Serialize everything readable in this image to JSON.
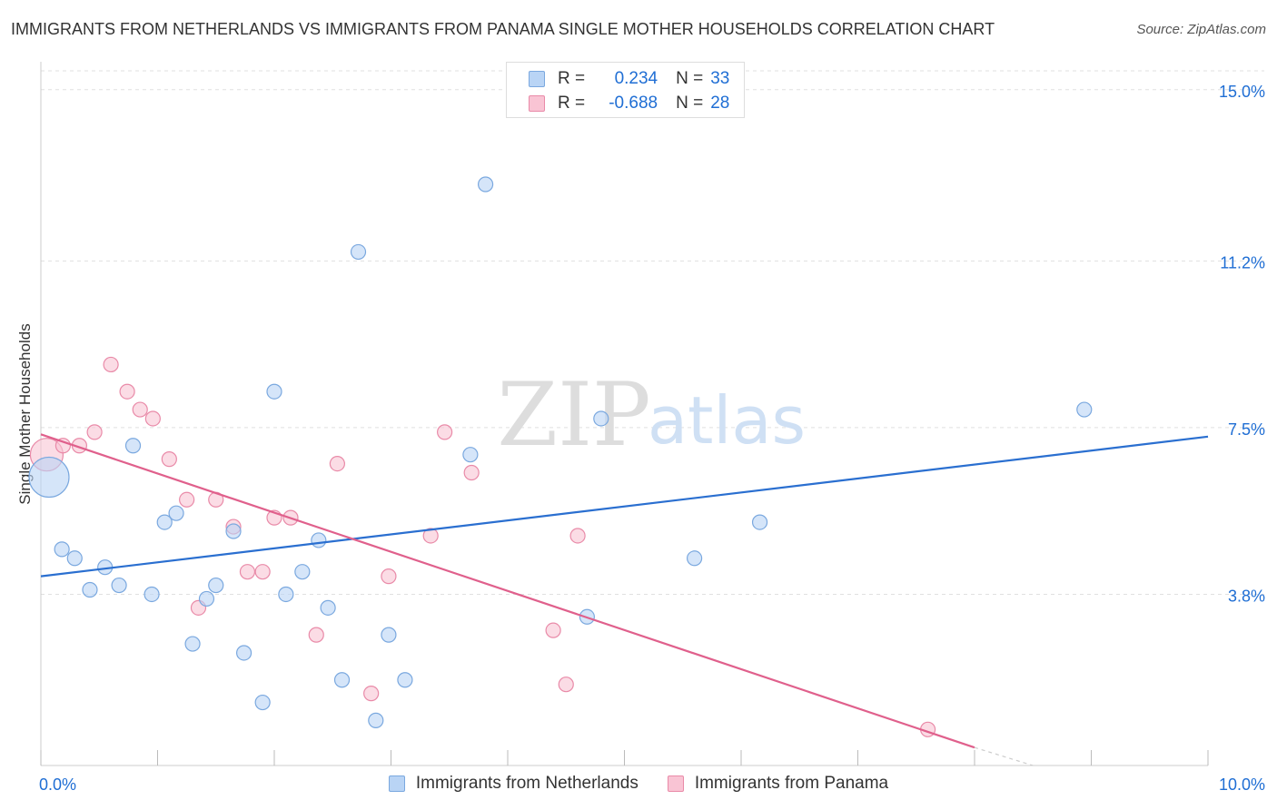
{
  "title": "IMMIGRANTS FROM NETHERLANDS VS IMMIGRANTS FROM PANAMA SINGLE MOTHER HOUSEHOLDS CORRELATION CHART",
  "source": "Source: ZipAtlas.com",
  "watermark": {
    "zip": "ZIP",
    "atlas": "atlas"
  },
  "legend": {
    "rows": [
      {
        "r_label": "R =",
        "r_value": "0.234",
        "n_label": "N =",
        "n_value": "33"
      },
      {
        "r_label": "R =",
        "r_value": "-0.688",
        "n_label": "N =",
        "n_value": "28"
      }
    ]
  },
  "bottom_legend": [
    "Immigrants from Netherlands",
    "Immigrants from Panama"
  ],
  "colors": {
    "netherlands_fill": "#b9d4f5",
    "netherlands_stroke": "#7aa8df",
    "netherlands_line": "#2a6fd0",
    "panama_fill": "#f9c4d4",
    "panama_stroke": "#e98aa8",
    "panama_line": "#e0608c",
    "axis_label": "#1f6ed4",
    "grid": "#e0e0e0"
  },
  "chart_data": {
    "type": "scatter",
    "title": "IMMIGRANTS FROM NETHERLANDS VS IMMIGRANTS FROM PANAMA SINGLE MOTHER HOUSEHOLDS CORRELATION CHART",
    "xlabel": "",
    "ylabel": "Single Mother Households",
    "xlim": [
      0,
      10
    ],
    "ylim": [
      0,
      15.5
    ],
    "x_tick_labels": [
      "0.0%",
      "10.0%"
    ],
    "y_ticks": [
      3.8,
      7.5,
      11.2,
      15.0
    ],
    "y_tick_labels": [
      "3.8%",
      "7.5%",
      "11.2%",
      "15.0%"
    ],
    "grid": "horizontal dashed",
    "legend_position": "top-center",
    "series": [
      {
        "name": "Immigrants from Netherlands",
        "r": 0.234,
        "n": 33,
        "points": [
          [
            0.07,
            6.4
          ],
          [
            0.18,
            4.8
          ],
          [
            0.29,
            4.6
          ],
          [
            0.42,
            3.9
          ],
          [
            0.55,
            4.4
          ],
          [
            0.67,
            4.0
          ],
          [
            0.79,
            7.1
          ],
          [
            0.95,
            3.8
          ],
          [
            1.06,
            5.4
          ],
          [
            1.16,
            5.6
          ],
          [
            1.3,
            2.7
          ],
          [
            1.42,
            3.7
          ],
          [
            1.5,
            4.0
          ],
          [
            1.65,
            5.2
          ],
          [
            1.74,
            2.5
          ],
          [
            1.9,
            1.4
          ],
          [
            2.0,
            8.3
          ],
          [
            2.1,
            3.8
          ],
          [
            2.24,
            4.3
          ],
          [
            2.38,
            5.0
          ],
          [
            2.46,
            3.5
          ],
          [
            2.58,
            1.9
          ],
          [
            2.72,
            11.4
          ],
          [
            2.87,
            1.0
          ],
          [
            2.98,
            2.9
          ],
          [
            3.12,
            1.9
          ],
          [
            3.68,
            6.9
          ],
          [
            3.81,
            12.9
          ],
          [
            4.68,
            3.3
          ],
          [
            4.8,
            7.7
          ],
          [
            5.6,
            4.6
          ],
          [
            6.16,
            5.4
          ],
          [
            8.94,
            7.9
          ]
        ],
        "trend": {
          "x": [
            0,
            10
          ],
          "y": [
            4.2,
            7.3
          ]
        }
      },
      {
        "name": "Immigrants from Panama",
        "r": -0.688,
        "n": 28,
        "points": [
          [
            0.05,
            6.9
          ],
          [
            0.19,
            7.1
          ],
          [
            0.33,
            7.1
          ],
          [
            0.46,
            7.4
          ],
          [
            0.6,
            8.9
          ],
          [
            0.74,
            8.3
          ],
          [
            0.85,
            7.9
          ],
          [
            0.96,
            7.7
          ],
          [
            1.1,
            6.8
          ],
          [
            1.25,
            5.9
          ],
          [
            1.35,
            3.5
          ],
          [
            1.5,
            5.9
          ],
          [
            1.65,
            5.3
          ],
          [
            1.77,
            4.3
          ],
          [
            1.9,
            4.3
          ],
          [
            2.0,
            5.5
          ],
          [
            2.14,
            5.5
          ],
          [
            2.36,
            2.9
          ],
          [
            2.54,
            6.7
          ],
          [
            2.83,
            1.6
          ],
          [
            2.98,
            4.2
          ],
          [
            3.34,
            5.1
          ],
          [
            3.46,
            7.4
          ],
          [
            3.69,
            6.5
          ],
          [
            4.39,
            3.0
          ],
          [
            4.5,
            1.8
          ],
          [
            4.6,
            5.1
          ],
          [
            7.6,
            0.8
          ]
        ],
        "trend": {
          "x": [
            0,
            8
          ],
          "y": [
            7.35,
            0.4
          ]
        },
        "trend_dashed_extension": {
          "x": [
            8,
            8.5
          ],
          "y": [
            0.4,
            0.0
          ]
        }
      }
    ]
  }
}
